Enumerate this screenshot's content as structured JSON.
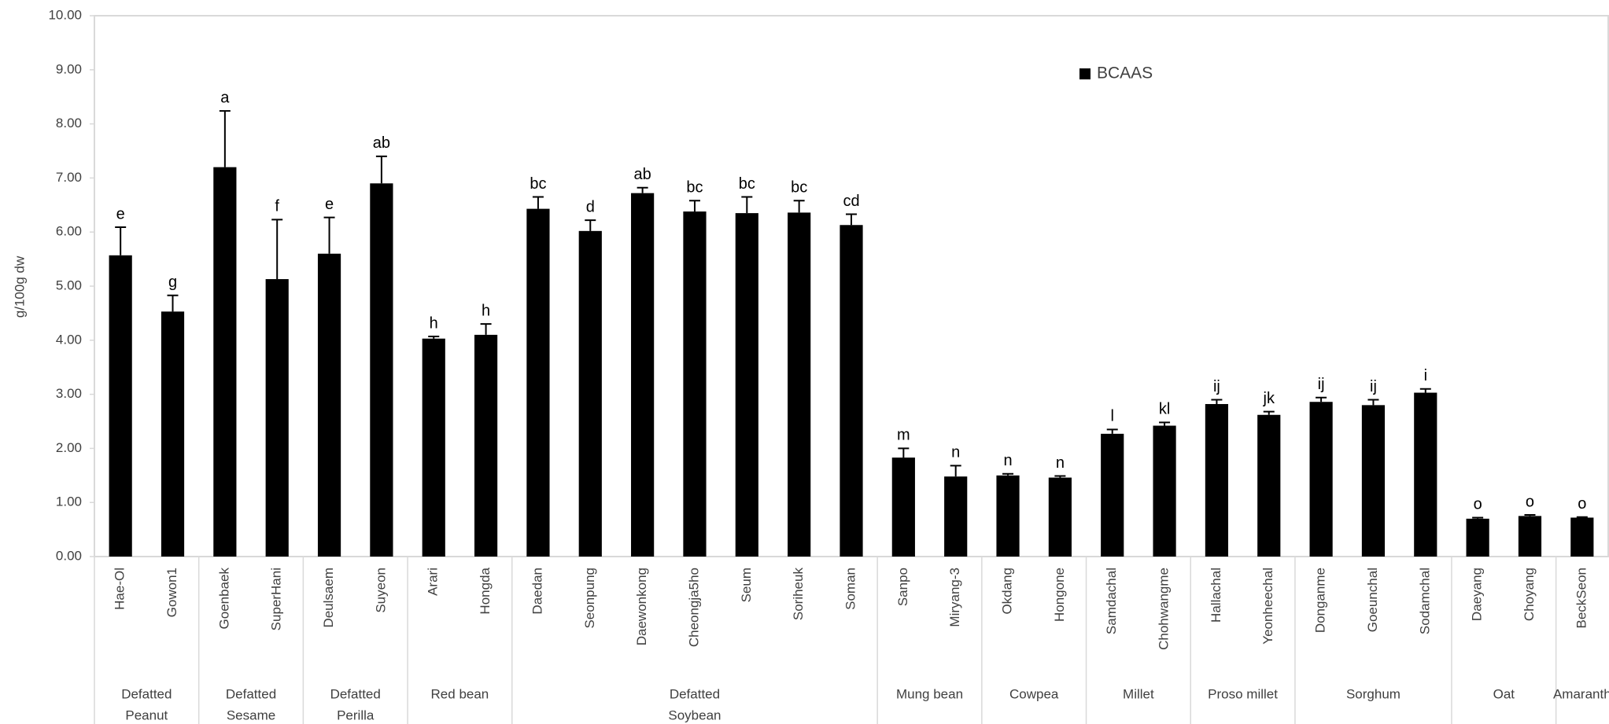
{
  "chart_data": {
    "type": "bar",
    "y_axis_label": "g/100g dw",
    "categories": [
      "Hae-Ol",
      "Gowon1",
      "Goenbaek",
      "SuperHani",
      "Deulsaem",
      "Suyeon",
      "Arari",
      "Hongda",
      "Daedan",
      "Seonpung",
      "Daewonkong",
      "Cheongja5ho",
      "Seum",
      "Soriheuk",
      "Soman",
      "Sanpo",
      "Miryang-3",
      "Okdang",
      "Hongone",
      "Samdachal",
      "Chohwangme",
      "Hallachal",
      "Yeonheechal",
      "Donganme",
      "Goeunchal",
      "Sodamchal",
      "Daeyang",
      "Choyang",
      "BeckSeon"
    ],
    "category_groups": [
      [
        "Defatted",
        "Peanut"
      ],
      null,
      [
        "Defatted",
        "Sesame"
      ],
      null,
      [
        "Defatted",
        "Perilla"
      ],
      null,
      [
        "Red bean"
      ],
      null,
      [
        "Defatted",
        "Soybean"
      ],
      null,
      null,
      null,
      null,
      null,
      null,
      [
        "Mung bean"
      ],
      null,
      [
        "Cowpea"
      ],
      null,
      [
        "Millet"
      ],
      null,
      [
        "Proso millet"
      ],
      null,
      [
        "Sorghum"
      ],
      null,
      null,
      [
        "Oat"
      ],
      null,
      [
        "Amaranth"
      ]
    ],
    "series": [
      {
        "name": "BCAAS",
        "color": "#000000",
        "values": [
          5.57,
          4.53,
          7.2,
          5.13,
          5.6,
          6.9,
          4.03,
          4.1,
          6.43,
          6.02,
          6.72,
          6.38,
          6.35,
          6.36,
          6.13,
          1.83,
          1.48,
          1.5,
          1.46,
          2.27,
          2.42,
          2.82,
          2.62,
          2.86,
          2.8,
          3.03,
          0.7,
          0.75,
          0.72
        ],
        "errors": [
          0.52,
          0.3,
          1.04,
          1.1,
          0.67,
          0.5,
          0.04,
          0.2,
          0.22,
          0.2,
          0.1,
          0.2,
          0.3,
          0.22,
          0.2,
          0.17,
          0.2,
          0.03,
          0.03,
          0.08,
          0.06,
          0.08,
          0.06,
          0.08,
          0.1,
          0.07,
          0.02,
          0.02,
          0.01
        ],
        "annotations": [
          "e",
          "g",
          "a",
          "f",
          "e",
          "ab",
          "h",
          "h",
          "bc",
          "d",
          "ab",
          "bc",
          "bc",
          "bc",
          "cd",
          "m",
          "n",
          "n",
          "n",
          "l",
          "kl",
          "ij",
          "jk",
          "ij",
          "ij",
          "i",
          "o",
          "o",
          "o"
        ]
      }
    ],
    "ylim": [
      0,
      10
    ],
    "yticks": [
      {
        "value": 0,
        "label": "0.00"
      },
      {
        "value": 1,
        "label": "1.00"
      },
      {
        "value": 2,
        "label": "2.00"
      },
      {
        "value": 3,
        "label": "3.00"
      },
      {
        "value": 4,
        "label": "4.00"
      },
      {
        "value": 5,
        "label": "5.00"
      },
      {
        "value": 6,
        "label": "6.00"
      },
      {
        "value": 7,
        "label": "7.00"
      },
      {
        "value": 8,
        "label": "8.00"
      },
      {
        "value": 9,
        "label": "9.00"
      },
      {
        "value": 10,
        "label": "10.00"
      }
    ],
    "grid": false,
    "legend": "top-right"
  }
}
